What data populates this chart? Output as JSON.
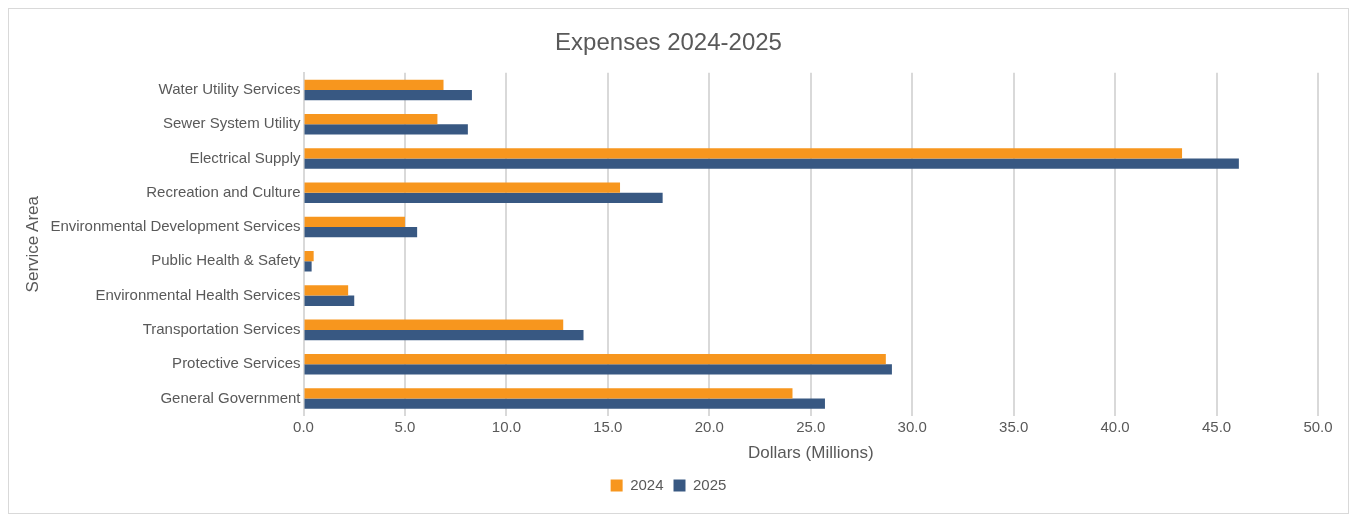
{
  "chart_data": {
    "type": "bar",
    "orientation": "horizontal",
    "title": "Expenses 2024-2025",
    "xlabel": "Dollars (Millions)",
    "ylabel": "Service Area",
    "categories": [
      "Water Utility Services",
      "Sewer System Utility",
      "Electrical Supply",
      "Recreation and Culture",
      "Environmental Development Services",
      "Public Health & Safety",
      "Environmental Health Services",
      "Transportation Services",
      "Protective Services",
      "General Government"
    ],
    "series": [
      {
        "name": "2024",
        "color": "#f7961e",
        "values": [
          6.9,
          6.6,
          43.3,
          15.6,
          5.0,
          0.5,
          2.2,
          12.8,
          28.7,
          24.1
        ]
      },
      {
        "name": "2025",
        "color": "#385882",
        "values": [
          8.3,
          8.1,
          46.1,
          17.7,
          5.6,
          0.4,
          2.5,
          13.8,
          29.0,
          25.7
        ]
      }
    ],
    "xlim": [
      0,
      50
    ],
    "xticks": [
      {
        "value": 0,
        "label": "0.0"
      },
      {
        "value": 5,
        "label": "5.0"
      },
      {
        "value": 10,
        "label": "10.0"
      },
      {
        "value": 15,
        "label": "15.0"
      },
      {
        "value": 20,
        "label": "20.0"
      },
      {
        "value": 25,
        "label": "25.0"
      },
      {
        "value": 30,
        "label": "30.0"
      },
      {
        "value": 35,
        "label": "35.0"
      },
      {
        "value": 40,
        "label": "40.0"
      },
      {
        "value": 45,
        "label": "45.0"
      },
      {
        "value": 50,
        "label": "50.0"
      }
    ],
    "grid": "x",
    "legend": "bottom"
  }
}
